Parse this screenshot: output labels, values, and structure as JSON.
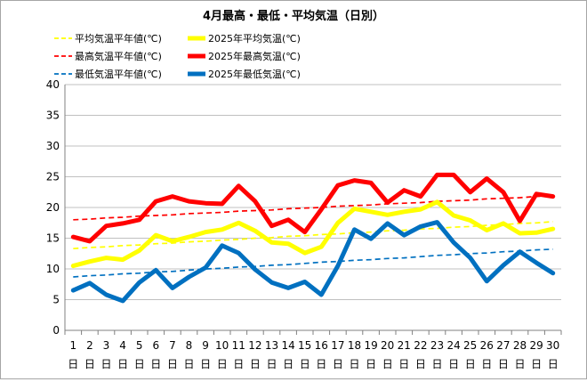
{
  "chart_data": {
    "type": "line",
    "title": "4月最高・最低・平均気温（日別）",
    "xlabel": "",
    "ylabel": "",
    "ylim": [
      0,
      40
    ],
    "yticks": [
      0,
      5,
      10,
      15,
      20,
      25,
      30,
      35,
      40
    ],
    "x": [
      1,
      2,
      3,
      4,
      5,
      6,
      7,
      8,
      9,
      10,
      11,
      12,
      13,
      14,
      15,
      16,
      17,
      18,
      19,
      20,
      21,
      22,
      23,
      24,
      25,
      26,
      27,
      28,
      29,
      30
    ],
    "x_suffix": "日",
    "grid": true,
    "legend_position": "top",
    "series": [
      {
        "name": "平均気温平年値(℃)",
        "style": "dashed",
        "color": "#ffff00",
        "values": [
          13.3,
          13.5,
          13.6,
          13.8,
          13.9,
          14.1,
          14.2,
          14.4,
          14.5,
          14.7,
          14.8,
          15.0,
          15.1,
          15.3,
          15.4,
          15.6,
          15.7,
          15.9,
          16.0,
          16.2,
          16.3,
          16.5,
          16.6,
          16.8,
          16.9,
          17.1,
          17.2,
          17.4,
          17.5,
          17.7
        ]
      },
      {
        "name": "2025年平均気温(℃)",
        "style": "solid",
        "color": "#ffff00",
        "values": [
          10.5,
          11.2,
          11.8,
          11.5,
          13.0,
          15.5,
          14.5,
          15.2,
          16.0,
          16.4,
          17.5,
          16.2,
          14.3,
          14.1,
          12.6,
          13.6,
          17.5,
          19.8,
          19.3,
          18.8,
          19.3,
          19.7,
          20.9,
          18.7,
          17.9,
          16.3,
          17.4,
          15.8,
          15.9,
          16.5
        ]
      },
      {
        "name": "最高気温平年値(℃)",
        "style": "dashed",
        "color": "#ff0000",
        "values": [
          18.0,
          18.1,
          18.3,
          18.4,
          18.6,
          18.7,
          18.8,
          19.0,
          19.1,
          19.2,
          19.4,
          19.5,
          19.6,
          19.8,
          19.9,
          20.0,
          20.2,
          20.3,
          20.4,
          20.6,
          20.7,
          20.8,
          21.0,
          21.1,
          21.2,
          21.4,
          21.5,
          21.6,
          21.8,
          21.9
        ]
      },
      {
        "name": "2025年最高気温(℃)",
        "style": "solid",
        "color": "#ff0000",
        "values": [
          15.2,
          14.5,
          17.0,
          17.4,
          18.0,
          21.0,
          21.8,
          21.0,
          20.7,
          20.6,
          23.5,
          21.0,
          17.0,
          18.0,
          16.0,
          19.7,
          23.6,
          24.4,
          24.0,
          20.8,
          22.8,
          21.8,
          25.3,
          25.3,
          22.5,
          24.7,
          22.5,
          17.8,
          22.2,
          21.8
        ]
      },
      {
        "name": "最低気温平年値(℃)",
        "style": "dashed",
        "color": "#0070c0",
        "values": [
          8.7,
          8.9,
          9.0,
          9.2,
          9.3,
          9.5,
          9.6,
          9.8,
          10.0,
          10.1,
          10.3,
          10.4,
          10.6,
          10.7,
          10.9,
          11.1,
          11.2,
          11.4,
          11.5,
          11.7,
          11.8,
          12.0,
          12.2,
          12.3,
          12.5,
          12.6,
          12.8,
          12.9,
          13.1,
          13.2
        ]
      },
      {
        "name": "2025年最低気温(℃)",
        "style": "solid",
        "color": "#0070c0",
        "values": [
          6.5,
          7.7,
          5.8,
          4.8,
          7.8,
          9.8,
          6.9,
          8.7,
          10.2,
          13.8,
          12.6,
          9.9,
          7.8,
          6.9,
          7.9,
          5.8,
          10.5,
          16.4,
          14.9,
          17.4,
          15.5,
          16.9,
          17.6,
          14.3,
          11.8,
          8.0,
          10.6,
          12.8,
          11.0,
          9.3
        ]
      }
    ]
  }
}
